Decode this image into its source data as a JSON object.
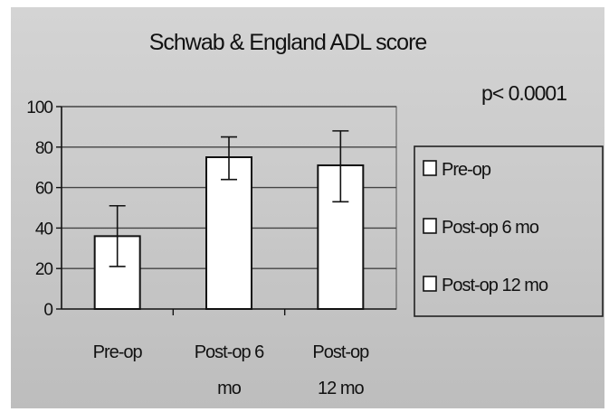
{
  "chart_data": {
    "type": "bar",
    "title": "Schwab & England ADL score",
    "annotation": "p< 0.0001",
    "categories": [
      [
        "Pre-op"
      ],
      [
        "Post-op 6",
        "mo"
      ],
      [
        "Post-op",
        "12 mo"
      ]
    ],
    "values": [
      36,
      75,
      71
    ],
    "error_low": [
      21,
      64,
      53
    ],
    "error_high": [
      51,
      85,
      88
    ],
    "ylim": [
      0,
      100
    ],
    "yticks": [
      0,
      20,
      40,
      60,
      80,
      100
    ],
    "ytick_labels": [
      "0",
      "20",
      "40",
      "60",
      "80",
      "100"
    ],
    "grid": true,
    "legend_position": "right",
    "legend": [
      "Pre-op",
      "Post-op 6 mo",
      "Post-op 12 mo"
    ],
    "colors": {
      "bar_fill": "#ffffff",
      "bar_stroke": "#111111",
      "grid": "#444444"
    }
  }
}
